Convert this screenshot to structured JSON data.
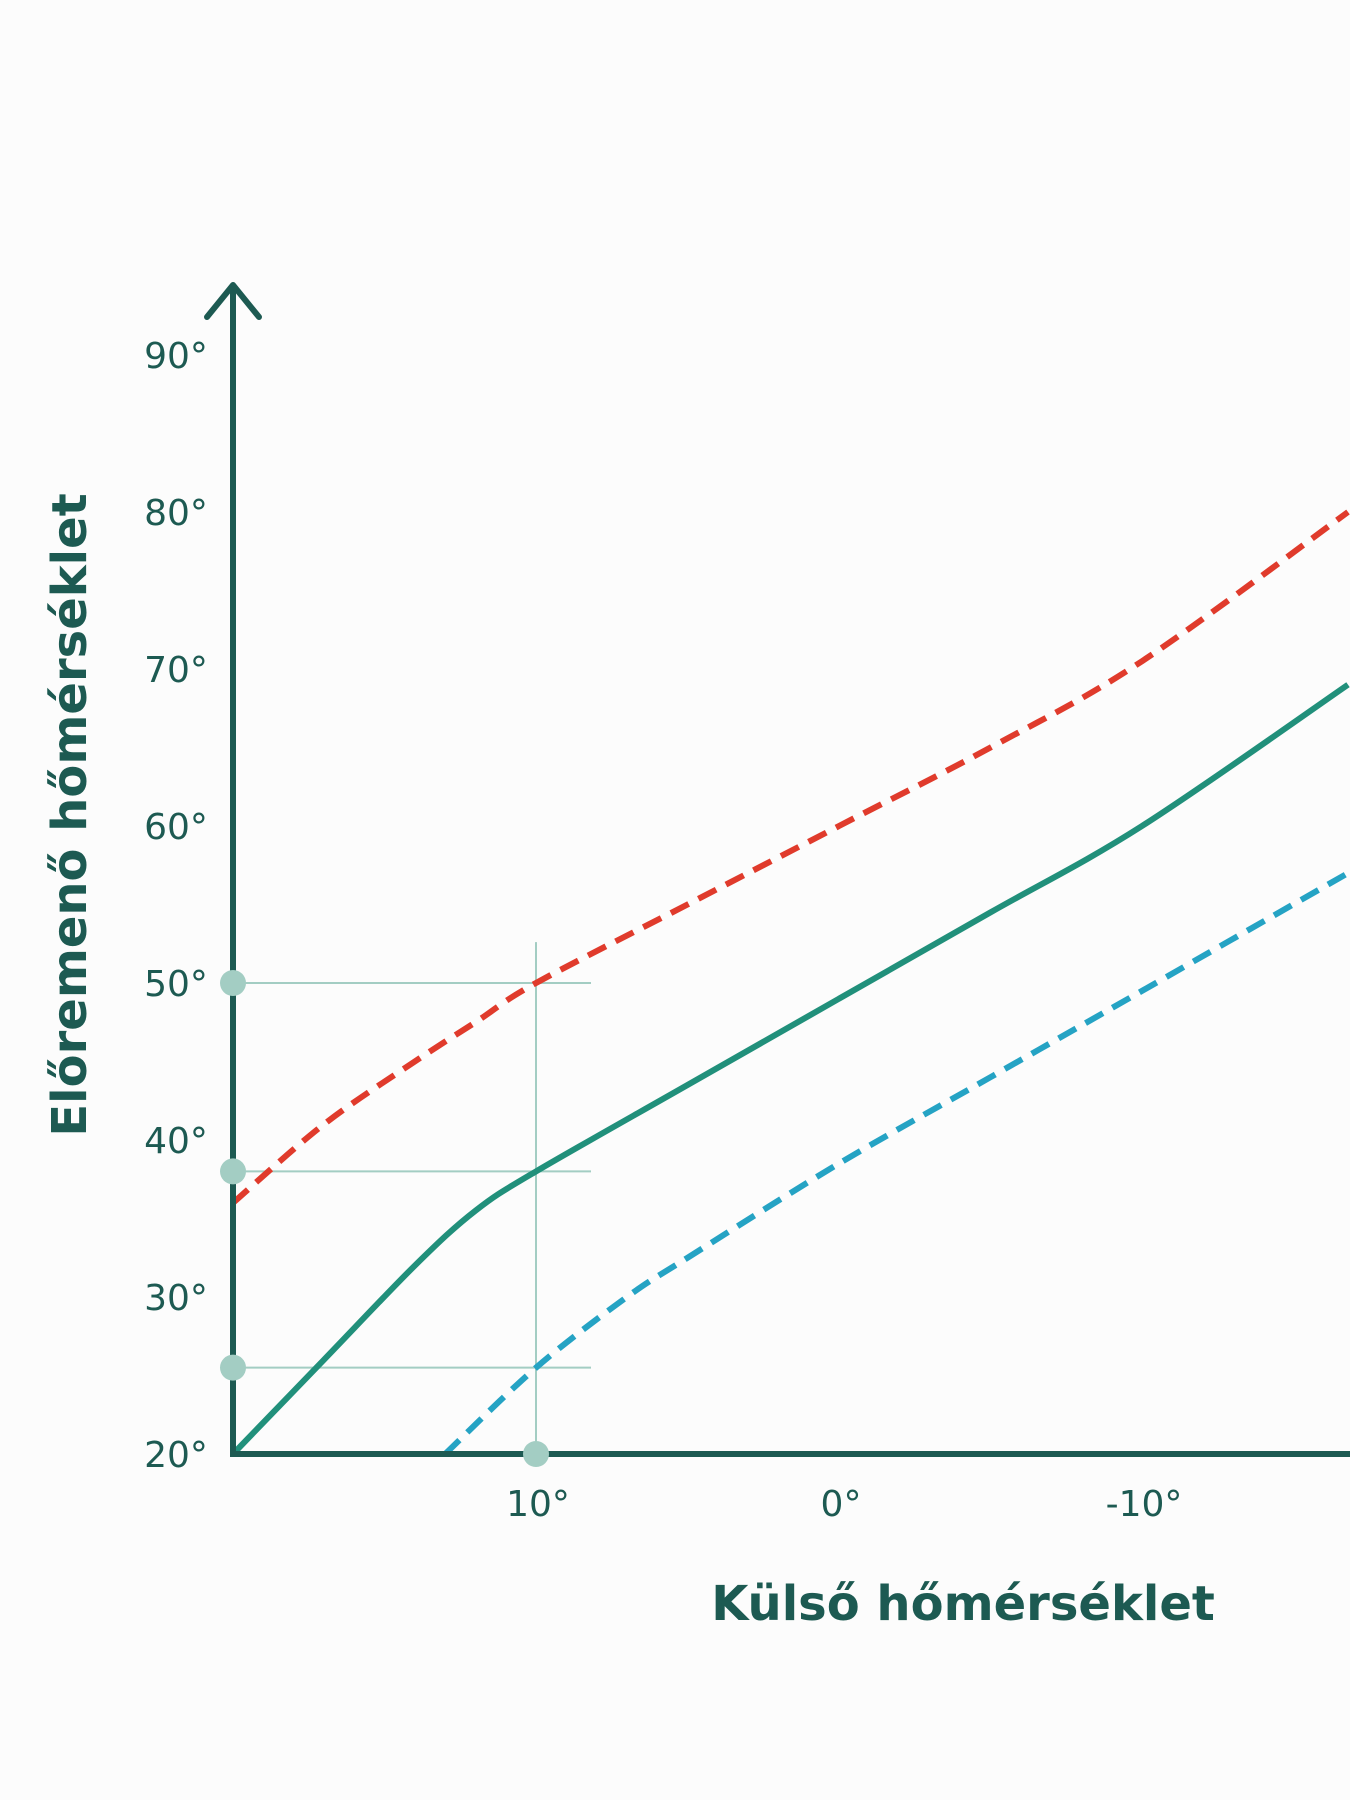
{
  "chart_data": {
    "type": "line",
    "xlabel": "Külső hőmérséklet",
    "ylabel": "Előremenő hőmérséklet",
    "x_reversed": true,
    "xlim": [
      20,
      -16.8
    ],
    "ylim": [
      20,
      90
    ],
    "x_ticks": [
      {
        "value": 10,
        "label": "10°"
      },
      {
        "value": 0,
        "label": "0°"
      },
      {
        "value": -10,
        "label": "-10°"
      }
    ],
    "y_ticks": [
      {
        "value": 20,
        "label": "20°"
      },
      {
        "value": 30,
        "label": "30°"
      },
      {
        "value": 40,
        "label": "40°"
      },
      {
        "value": 50,
        "label": "50°"
      },
      {
        "value": 60,
        "label": "60°"
      },
      {
        "value": 70,
        "label": "70°"
      },
      {
        "value": 80,
        "label": "80°"
      },
      {
        "value": 90,
        "label": "90°"
      }
    ],
    "grid": false,
    "series": [
      {
        "color": "#e03b2c",
        "style": "dashed",
        "points": [
          [
            20,
            36
          ],
          [
            17,
            41
          ],
          [
            14,
            45
          ],
          [
            12,
            47.5
          ],
          [
            10,
            50
          ],
          [
            5,
            55
          ],
          [
            0,
            60
          ],
          [
            -5,
            65
          ],
          [
            -10,
            70.5
          ],
          [
            -16.8,
            80
          ]
        ]
      },
      {
        "color": "#21907b",
        "style": "solid",
        "points": [
          [
            20,
            20
          ],
          [
            17,
            26
          ],
          [
            14,
            32
          ],
          [
            12,
            35.5
          ],
          [
            10,
            38
          ],
          [
            5,
            43.5
          ],
          [
            0,
            49
          ],
          [
            -5,
            54.5
          ],
          [
            -10,
            60
          ],
          [
            -16.8,
            69
          ]
        ]
      },
      {
        "color": "#25a3c4",
        "style": "dashed",
        "points": [
          [
            13,
            20
          ],
          [
            10,
            25.5
          ],
          [
            7,
            30
          ],
          [
            5,
            32.5
          ],
          [
            0,
            38.5
          ],
          [
            -5,
            44
          ],
          [
            -10,
            49.5
          ],
          [
            -16.8,
            57
          ]
        ]
      }
    ],
    "guides": {
      "x": 10,
      "y_values": [
        50,
        38,
        25.5
      ],
      "color": "#a3cdc3"
    }
  }
}
